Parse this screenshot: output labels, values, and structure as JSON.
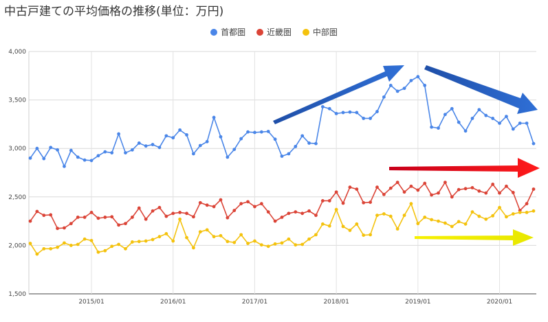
{
  "chart_data": {
    "type": "line",
    "title": "中古戸建ての平均価格の推移(単位：万円)",
    "xlabel": "",
    "ylabel": "",
    "ylim": [
      1500,
      4000
    ],
    "yticks": [
      "1,500",
      "2,000",
      "2,500",
      "3,000",
      "3,500",
      "4,000"
    ],
    "ytick_values": [
      1500,
      2000,
      2500,
      3000,
      3500,
      4000
    ],
    "xticks": [
      "2015/01",
      "2016/01",
      "2017/01",
      "2018/01",
      "2019/01",
      "2020/01"
    ],
    "x_start": "2014/04",
    "x_end": "2020/06",
    "grid": true,
    "legend_position": "top",
    "series": [
      {
        "name": "首都圏",
        "color": "#4a86e8",
        "values": [
          2900,
          3000,
          2895,
          3010,
          2985,
          2815,
          2980,
          2910,
          2880,
          2875,
          2925,
          2965,
          2955,
          3150,
          2955,
          2985,
          3055,
          3025,
          3040,
          3010,
          3130,
          3110,
          3190,
          3140,
          2945,
          3030,
          3070,
          3320,
          3120,
          2910,
          2990,
          3100,
          3170,
          3165,
          3170,
          3175,
          3095,
          2920,
          2945,
          3020,
          3130,
          3055,
          3050,
          3430,
          3410,
          3360,
          3370,
          3375,
          3370,
          3310,
          3310,
          3380,
          3530,
          3650,
          3590,
          3620,
          3700,
          3740,
          3650,
          3220,
          3210,
          3350,
          3410,
          3270,
          3180,
          3310,
          3400,
          3340,
          3310,
          3260,
          3330,
          3200,
          3260,
          3260,
          3050
        ]
      },
      {
        "name": "近畿圏",
        "color": "#db4437",
        "values": [
          2250,
          2350,
          2310,
          2315,
          2175,
          2180,
          2225,
          2290,
          2290,
          2340,
          2280,
          2290,
          2295,
          2210,
          2225,
          2290,
          2385,
          2270,
          2355,
          2390,
          2300,
          2330,
          2340,
          2330,
          2295,
          2440,
          2415,
          2400,
          2470,
          2285,
          2360,
          2430,
          2450,
          2400,
          2430,
          2345,
          2250,
          2290,
          2330,
          2345,
          2330,
          2355,
          2310,
          2460,
          2460,
          2550,
          2435,
          2600,
          2580,
          2440,
          2445,
          2600,
          2525,
          2590,
          2650,
          2550,
          2610,
          2570,
          2640,
          2520,
          2540,
          2650,
          2500,
          2575,
          2585,
          2595,
          2560,
          2540,
          2630,
          2540,
          2610,
          2545,
          2360,
          2430,
          2580
        ]
      },
      {
        "name": "中部圏",
        "color": "#f4c20d",
        "values": [
          2020,
          1910,
          1965,
          1965,
          1980,
          2025,
          2000,
          2010,
          2065,
          2050,
          1930,
          1945,
          1990,
          2010,
          1965,
          2035,
          2040,
          2045,
          2060,
          2090,
          2120,
          2045,
          2270,
          2080,
          1975,
          2140,
          2160,
          2090,
          2100,
          2040,
          2030,
          2110,
          2020,
          2045,
          2005,
          1990,
          2015,
          2025,
          2065,
          2005,
          2010,
          2065,
          2110,
          2220,
          2200,
          2370,
          2195,
          2155,
          2220,
          2105,
          2110,
          2310,
          2325,
          2300,
          2170,
          2310,
          2430,
          2225,
          2290,
          2265,
          2250,
          2230,
          2195,
          2245,
          2220,
          2345,
          2300,
          2270,
          2305,
          2390,
          2295,
          2325,
          2340,
          2340,
          2355
        ]
      }
    ],
    "annotations": [
      {
        "type": "arrow",
        "color": "blue",
        "description": "rising arrow over 2017-2018"
      },
      {
        "type": "arrow",
        "color": "blue",
        "description": "falling arrow over 2019-2020"
      },
      {
        "type": "arrow",
        "color": "red",
        "description": "flat arrow at right"
      },
      {
        "type": "arrow",
        "color": "yellow",
        "description": "flat arrow at right"
      }
    ]
  }
}
